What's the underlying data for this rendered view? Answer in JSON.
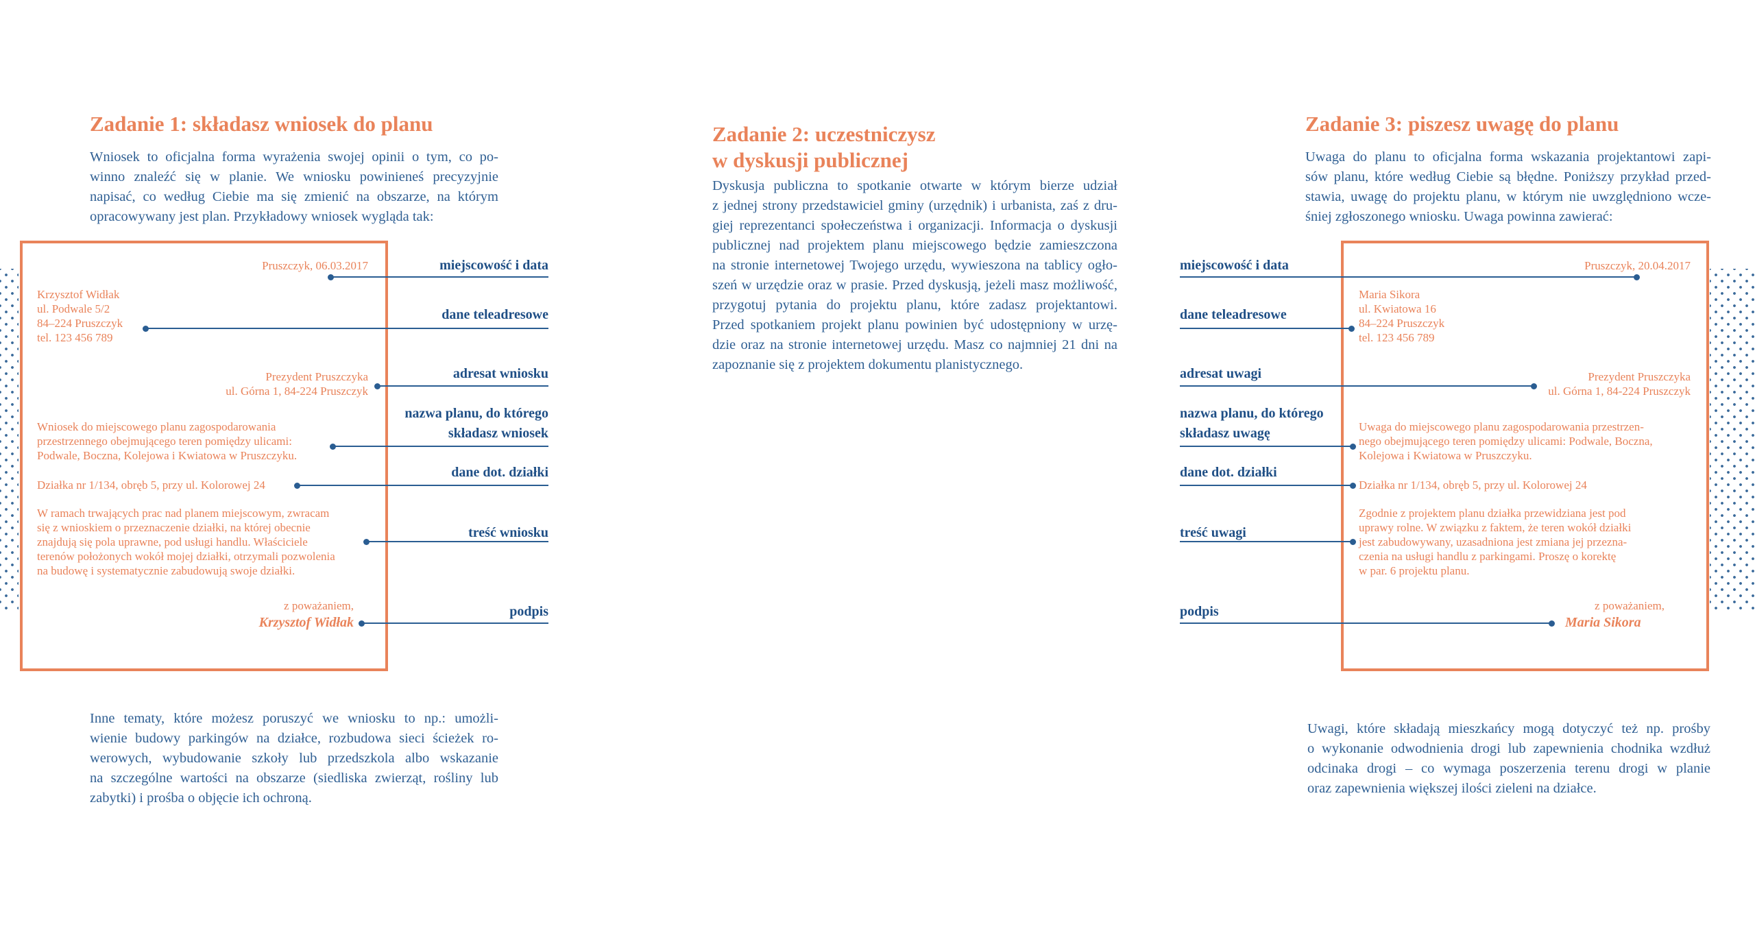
{
  "colors": {
    "accent": "#e9835a",
    "primary": "#2a5d92"
  },
  "task1": {
    "title": "Zadanie 1: składasz wniosek do planu",
    "intro": [
      "Wniosek to oficjalna forma wyrażenia swojej opinii o tym, co po-",
      "winno znaleźć się w planie. We wniosku powinieneś precyzyjnie",
      "napisać, co według Ciebie ma się zmienić na obszarze, na którym",
      "opracowywany jest plan. Przykładowy wniosek wygląda tak:"
    ],
    "letter": {
      "place_date": "Pruszczyk, 06.03.2017",
      "sender": [
        "Krzysztof  Widłak",
        "ul. Podwale 5/2",
        "84–224 Pruszczyk",
        "tel. 123 456 789"
      ],
      "recipient": [
        "Prezydent Pruszczyka",
        "ul. Górna 1, 84-224 Pruszczyk"
      ],
      "plan_name": [
        "Wniosek do miejscowego planu zagospodarowania",
        "przestrzennego obejmującego teren pomiędzy ulicami:",
        "Podwale, Boczna, Kolejowa i Kwiatowa w Pruszczyku."
      ],
      "plot": "Działka nr 1/134, obręb 5, przy ul. Kolorowej 24",
      "body": [
        "W ramach trwających prac nad planem miejscowym, zwracam",
        "się z wnioskiem o przeznaczenie działki, na której obecnie",
        "znajdują się pola uprawne, pod usługi handlu. Właściciele",
        "terenów położonych wokół mojej działki, otrzymali pozwolenia",
        "na budowę i systematycznie zabudowują swoje działki."
      ],
      "closing": "z poważaniem,",
      "signature": "Krzysztof Widłak"
    },
    "labels": {
      "place_date": "miejscowość i data",
      "contact": "dane teleadresowe",
      "recipient": "adresat wniosku",
      "plan_name": [
        "nazwa planu, do którego",
        "składasz wniosek"
      ],
      "plot": "dane dot. działki",
      "content": "treść wniosku",
      "signature": "podpis"
    },
    "outro": [
      "Inne tematy, które możesz poruszyć we wniosku to np.: umożli-",
      "wienie budowy parkingów na działce, rozbudowa sieci ścieżek ro-",
      "werowych, wybudowanie szkoły lub przedszkola albo wskazanie",
      "na szczególne wartości na obszarze (siedliska zwierząt, rośliny lub",
      "zabytki) i prośba o objęcie ich ochroną."
    ]
  },
  "task2": {
    "title": [
      "Zadanie 2: uczestniczysz",
      "w dyskusji publicznej"
    ],
    "body": [
      "Dyskusja publiczna to spotkanie otwarte w którym bierze udział",
      "z jednej strony przedstawiciel gminy (urzędnik) i urbanista, zaś z dru-",
      "giej reprezentanci społeczeństwa i organizacji. Informacja o dyskusji",
      "publicznej nad projektem planu miejscowego będzie zamieszczona",
      "na stronie internetowej Twojego urzędu, wywieszona na tablicy ogło-",
      "szeń w urzędzie oraz w prasie. Przed dyskusją, jeżeli masz możliwość,",
      "przygotuj pytania do projektu planu, które zadasz projektantowi.",
      "Przed spotkaniem projekt planu powinien być udostępniony w urzę-",
      "dzie oraz na stronie internetowej urzędu. Masz co najmniej 21 dni na",
      "zapoznanie się z projektem dokumentu planistycznego."
    ]
  },
  "task3": {
    "title": "Zadanie 3: piszesz uwagę do planu",
    "intro": [
      "Uwaga do planu to oficjalna forma wskazania projektantowi zapi-",
      "sów planu, które według Ciebie są błędne. Poniższy przykład przed-",
      "stawia, uwagę do projektu planu, w którym nie uwzględniono wcze-",
      "śniej zgłoszonego wniosku. Uwaga powinna zawierać:"
    ],
    "letter": {
      "place_date": "Pruszczyk, 20.04.2017",
      "sender": [
        "Maria  Sikora",
        "ul. Kwiatowa 16",
        "84–224 Pruszczyk",
        "tel. 123 456 789"
      ],
      "recipient": [
        "Prezydent Pruszczyka",
        "ul. Górna 1, 84-224 Pruszczyk"
      ],
      "plan_name": [
        "Uwaga do miejscowego planu zagospodarowania przestrzen-",
        "nego obejmującego teren pomiędzy ulicami: Podwale, Boczna,",
        "Kolejowa i Kwiatowa w Pruszczyku."
      ],
      "plot": "Działka nr 1/134, obręb 5, przy ul. Kolorowej 24",
      "body": [
        "Zgodnie z projektem planu działka przewidziana jest pod",
        "uprawy rolne. W związku z faktem, że teren wokół działki",
        "jest zabudowywany, uzasadniona jest zmiana jej przezna-",
        "czenia na usługi handlu z parkingami. Proszę o korektę",
        "w par. 6 projektu planu."
      ],
      "closing": "z poważaniem,",
      "signature": "Maria Sikora"
    },
    "labels": {
      "place_date": "miejscowość i data",
      "contact": "dane teleadresowe",
      "recipient": "adresat uwagi",
      "plan_name": [
        "nazwa planu, do którego",
        "składasz uwagę"
      ],
      "plot": "dane dot. działki",
      "content": "treść uwagi",
      "signature": "podpis"
    },
    "outro": [
      "Uwagi, które składają mieszkańcy mogą dotyczyć też np. prośby",
      "o wykonanie odwodnienia drogi lub zapewnienia chodnika wzdłuż",
      "odcinaka drogi – co wymaga poszerzenia terenu drogi w planie",
      "oraz zapewnienia większej ilości zieleni na działce."
    ]
  }
}
